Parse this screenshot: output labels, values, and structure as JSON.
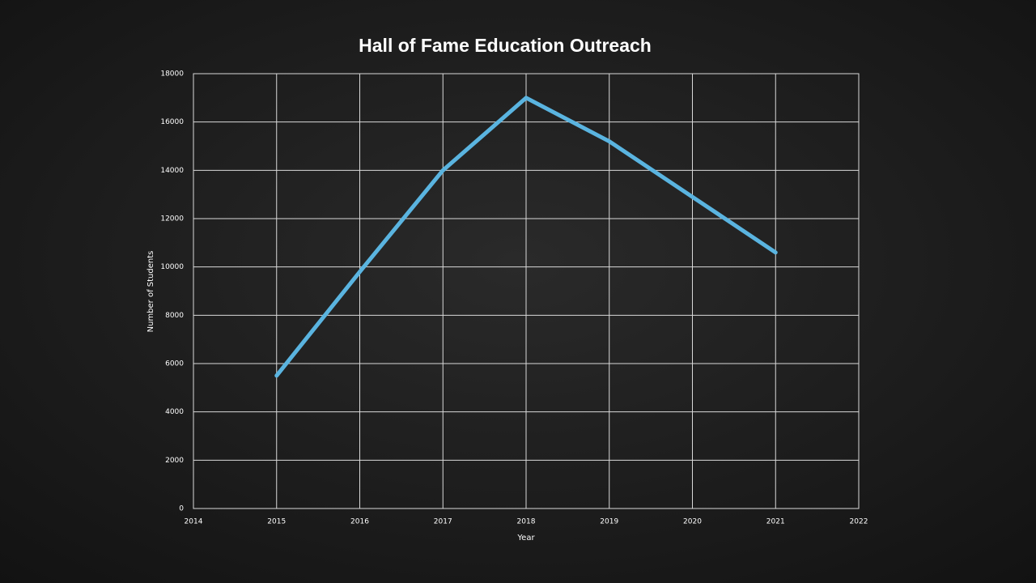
{
  "chart_data": {
    "type": "line",
    "title": "Hall of Fame Education Outreach",
    "x_label": "Year",
    "y_label": "Number of Students",
    "x": [
      2015,
      2016,
      2017,
      2018,
      2019,
      2020,
      2021
    ],
    "series": [
      {
        "name": "Number of Students",
        "color": "#5ab4e0",
        "values": [
          5500,
          9800,
          14000,
          17000,
          15200,
          12900,
          10600
        ]
      }
    ],
    "xlim": [
      2014,
      2022
    ],
    "xticks": [
      2014,
      2015,
      2016,
      2017,
      2018,
      2019,
      2020,
      2021,
      2022
    ],
    "ylim": [
      0,
      18000
    ],
    "yticks": [
      0,
      2000,
      4000,
      6000,
      8000,
      10000,
      12000,
      14000,
      16000,
      18000
    ],
    "grid": true
  }
}
